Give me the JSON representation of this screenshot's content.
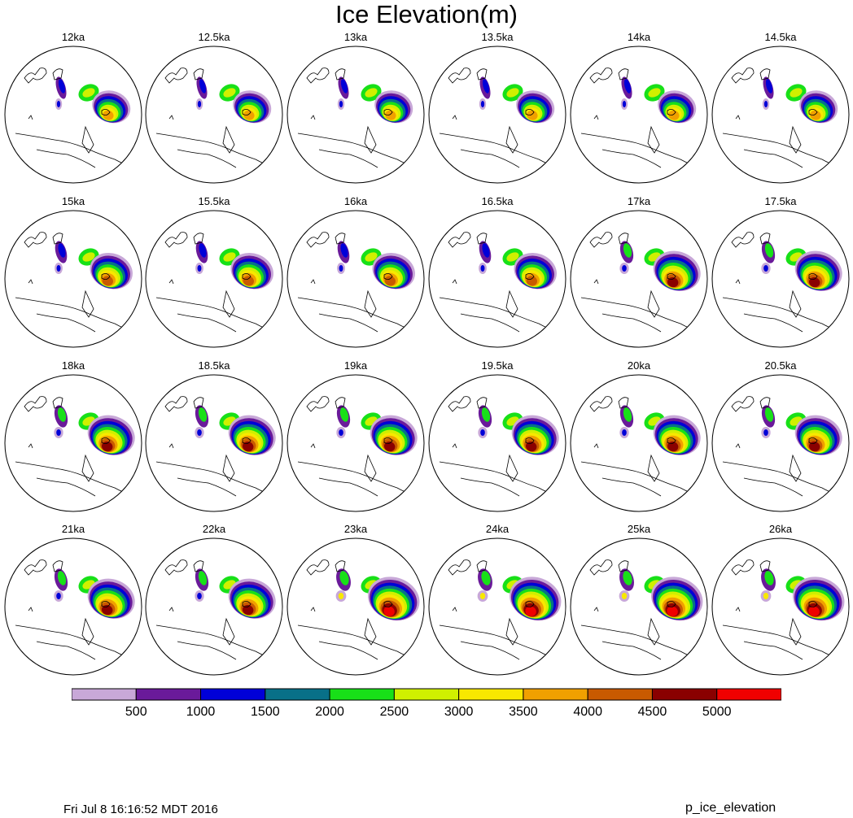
{
  "chart_data": {
    "type": "heatmap",
    "title": "Ice Elevation(m)",
    "variable": "p_ice_elevation",
    "units": "m",
    "projection": "north polar stereographic",
    "panels": [
      "12ka",
      "12.5ka",
      "13ka",
      "13.5ka",
      "14ka",
      "14.5ka",
      "15ka",
      "15.5ka",
      "16ka",
      "16.5ka",
      "17ka",
      "17.5ka",
      "18ka",
      "18.5ka",
      "19ka",
      "19.5ka",
      "20ka",
      "20.5ka",
      "21ka",
      "22ka",
      "23ka",
      "24ka",
      "25ka",
      "26ka"
    ],
    "panel_max_level": [
      7,
      7,
      7,
      7,
      7,
      7,
      8,
      8,
      8,
      8,
      9,
      9,
      9,
      9,
      9,
      9,
      9,
      9,
      9,
      9,
      10,
      10,
      10,
      10
    ],
    "colorbar": {
      "levels": [
        500,
        1000,
        1500,
        2000,
        2500,
        3000,
        3500,
        4000,
        4500,
        5000
      ],
      "colors": [
        "#c8a8d8",
        "#6a1a9a",
        "#0000d8",
        "#087088",
        "#18e018",
        "#d0f000",
        "#f8e800",
        "#f0a000",
        "#c85a00",
        "#8a0000",
        "#f00000"
      ]
    },
    "colorbar_tick_labels": [
      "500",
      "1000",
      "1500",
      "2000",
      "2500",
      "3000",
      "3500",
      "4000",
      "4500",
      "5000"
    ]
  },
  "footer": {
    "timestamp": "Fri Jul  8 16:16:52 MDT 2016",
    "plot_name": "p_ice_elevation"
  }
}
